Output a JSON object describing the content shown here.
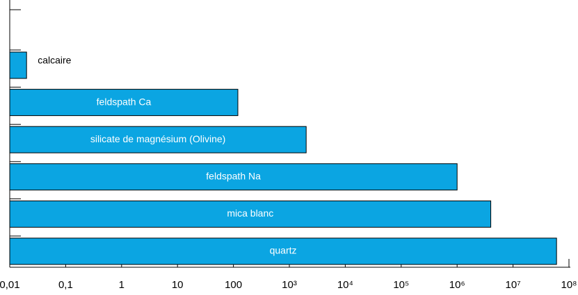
{
  "chart_data": {
    "type": "barh",
    "categories": [
      "calcaire",
      "feldspath Ca",
      "silicate de magnésium (Olivine)",
      "feldspath Na",
      "mica blanc",
      "quartz"
    ],
    "values": [
      0.02,
      120,
      2000,
      1000000,
      4000000,
      60000000
    ],
    "color": "#0ba5e2",
    "xscale": "log",
    "xlim": [
      0.01,
      100000000
    ],
    "xticks": [
      {
        "value": 0.01,
        "label": "0,01"
      },
      {
        "value": 0.1,
        "label": "0,1"
      },
      1,
      10,
      100,
      {
        "value": 1000,
        "label": "10³"
      },
      {
        "value": 10000,
        "label": "10⁴"
      },
      {
        "value": 100000,
        "label": "10⁵"
      },
      {
        "value": 1000000,
        "label": "10⁶"
      },
      {
        "value": 10000000,
        "label": "10⁷"
      },
      {
        "value": 100000000,
        "label": "10⁸"
      }
    ]
  }
}
